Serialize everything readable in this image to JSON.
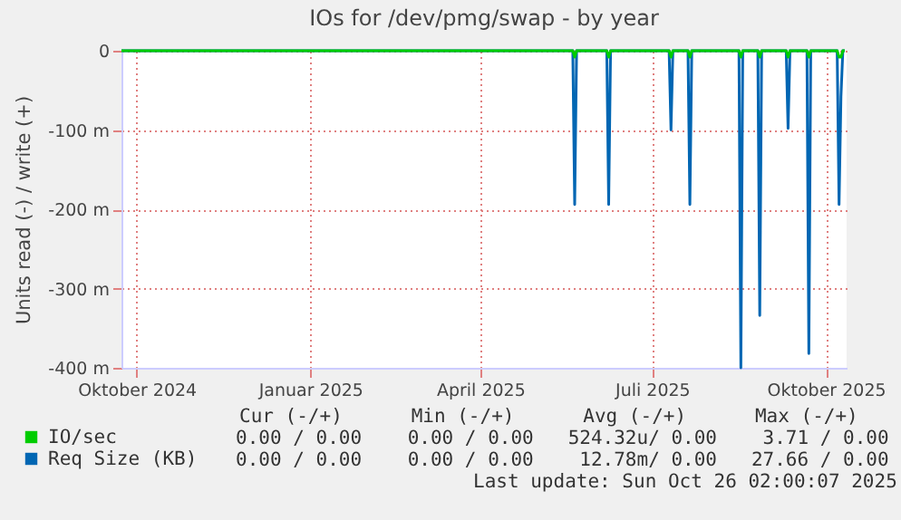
{
  "chart_data": {
    "type": "line",
    "title": "IOs for /dev/pmg/swap - by year",
    "ylabel": "Units read (-) / write (+)",
    "x": [
      "2024-09-23",
      "2025-05-20",
      "2025-05-21",
      "2025-05-22",
      "2025-06-07",
      "2025-06-08",
      "2025-06-09",
      "2025-07-10",
      "2025-07-11",
      "2025-07-12",
      "2025-07-20",
      "2025-07-21",
      "2025-07-22",
      "2025-08-16",
      "2025-08-17",
      "2025-08-18",
      "2025-08-26",
      "2025-08-27",
      "2025-08-28",
      "2025-09-10",
      "2025-09-11",
      "2025-09-12",
      "2025-09-21",
      "2025-09-22",
      "2025-09-23",
      "2025-10-07",
      "2025-10-08",
      "2025-10-09",
      "2025-10-10",
      "2025-10-11"
    ],
    "series": [
      {
        "name": "Req Size (KB)",
        "color": "#0066b3",
        "values": [
          0,
          0,
          -194,
          0,
          0,
          -194,
          0,
          0,
          -100,
          0,
          0,
          -194,
          0,
          0,
          -400,
          0,
          0,
          -334,
          0,
          0,
          -98,
          0,
          0,
          -382,
          0,
          0,
          -194,
          -58,
          0,
          0
        ]
      },
      {
        "name": "IO/sec",
        "color": "#00cc00",
        "values": [
          0,
          0,
          -8,
          0,
          0,
          -8,
          0,
          0,
          -8,
          0,
          0,
          -8,
          0,
          0,
          -8,
          0,
          0,
          -8,
          0,
          0,
          -8,
          0,
          0,
          -8,
          0,
          0,
          -8,
          -8,
          0,
          0
        ]
      }
    ],
    "xlim": [
      "2024-09-23",
      "2025-10-12"
    ],
    "xticks": [
      {
        "value": "2024-10-01",
        "label": "Oktober 2024"
      },
      {
        "value": "2025-01-01",
        "label": "Januar 2025"
      },
      {
        "value": "2025-04-01",
        "label": "April 2025"
      },
      {
        "value": "2025-07-01",
        "label": "Juli 2025"
      },
      {
        "value": "2025-10-01",
        "label": "Oktober 2025"
      }
    ],
    "ylim": [
      -400,
      0
    ],
    "yticks": [
      {
        "value": -400,
        "label": "-400 m"
      },
      {
        "value": -300,
        "label": "-300 m"
      },
      {
        "value": -200,
        "label": "-200 m"
      },
      {
        "value": -100,
        "label": "-100 m"
      },
      0
    ],
    "grid": true,
    "legend": "bottom left",
    "annotations": [
      "Cur (-/+)      Min (-/+)      Avg (-/+)      Max (-/+)",
      "0.00 / 0.00    0.00 / 0.00   524.32u/ 0.00    3.71 / 0.00",
      "0.00 / 0.00    0.00 / 0.00    12.78m/ 0.00   27.66 / 0.00",
      "Last update: Sun Oct 26 02:00:07 2025"
    ]
  }
}
